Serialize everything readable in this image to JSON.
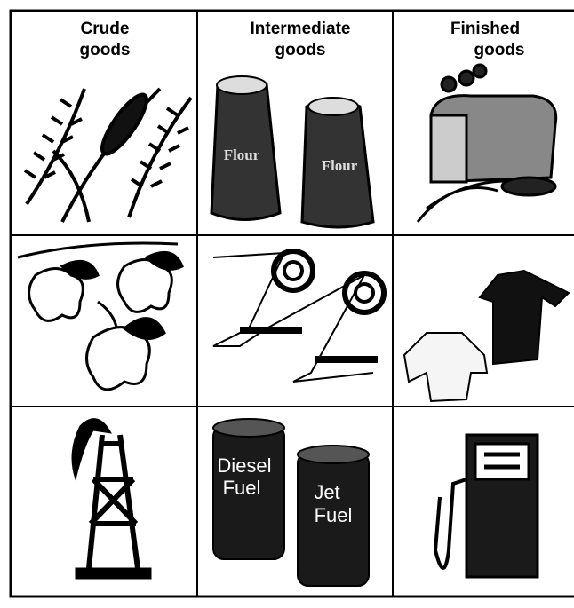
{
  "columns": [
    {
      "heading": [
        "Crude",
        "goods"
      ]
    },
    {
      "heading": [
        "Intermediate",
        "goods"
      ]
    },
    {
      "heading": [
        "Finished",
        "goods"
      ]
    }
  ],
  "sacks": [
    "Flour",
    "Flour"
  ],
  "barrels": [
    [
      "Diesel",
      "Fuel"
    ],
    [
      "Jet",
      "Fuel"
    ]
  ]
}
